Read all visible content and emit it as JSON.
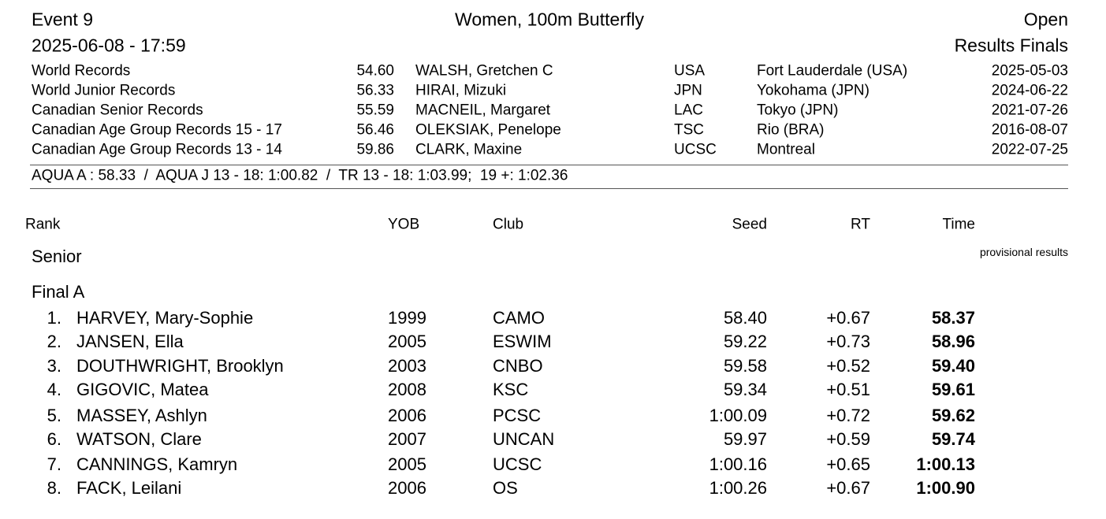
{
  "header": {
    "event": "Event 9",
    "title": "Women, 100m Butterfly",
    "category": "Open",
    "datetime": "2025-06-08 - 17:59",
    "phase": "Results Finals"
  },
  "records": [
    [
      "World Records",
      "54.60",
      "WALSH, Gretchen C",
      "USA",
      "Fort Lauderdale (USA)",
      "2025-05-03"
    ],
    [
      "World Junior Records",
      "56.33",
      "HIRAI, Mizuki",
      "JPN",
      "Yokohama (JPN)",
      "2024-06-22"
    ],
    [
      "Canadian Senior Records",
      "55.59",
      "MACNEIL, Margaret",
      "LAC",
      "Tokyo (JPN)",
      "2021-07-26"
    ],
    [
      "Canadian Age Group Records 15 - 17",
      "56.46",
      "OLEKSIAK, Penelope",
      "TSC",
      "Rio (BRA)",
      "2016-08-07"
    ],
    [
      "Canadian Age Group Records 13 - 14",
      "59.86",
      "CLARK, Maxine",
      "UCSC",
      "Montreal",
      "2022-07-25"
    ]
  ],
  "standards": "AQUA A : 58.33  /  AQUA J 13 - 18: 1:00.82  /  TR 13 - 18: 1:03.99;  19 +: 1:02.36",
  "columns": [
    "Rank",
    "YOB",
    "Club",
    "Seed",
    "RT",
    "Time"
  ],
  "group": "Senior",
  "note": "provisional results",
  "heat": "Final A",
  "results": [
    [
      "1.",
      "HARVEY, Mary-Sophie",
      "1999",
      "CAMO",
      "58.40",
      "+0.67",
      "58.37"
    ],
    [
      "2.",
      "JANSEN, Ella",
      "2005",
      "ESWIM",
      "59.22",
      "+0.73",
      "58.96"
    ],
    [
      "3.",
      "DOUTHWRIGHT, Brooklyn",
      "2003",
      "CNBO",
      "59.58",
      "+0.52",
      "59.40"
    ],
    [
      "4.",
      "GIGOVIC, Matea",
      "2008",
      "KSC",
      "59.34",
      "+0.51",
      "59.61"
    ],
    [
      "5.",
      "MASSEY, Ashlyn",
      "2006",
      "PCSC",
      "1:00.09",
      "+0.72",
      "59.62"
    ],
    [
      "6.",
      "WATSON, Clare",
      "2007",
      "UNCAN",
      "59.97",
      "+0.59",
      "59.74"
    ],
    [
      "7.",
      "CANNINGS, Kamryn",
      "2005",
      "UCSC",
      "1:00.16",
      "+0.65",
      "1:00.13"
    ],
    [
      "8.",
      "FACK, Leilani",
      "2006",
      "OS",
      "1:00.26",
      "+0.67",
      "1:00.90"
    ]
  ]
}
